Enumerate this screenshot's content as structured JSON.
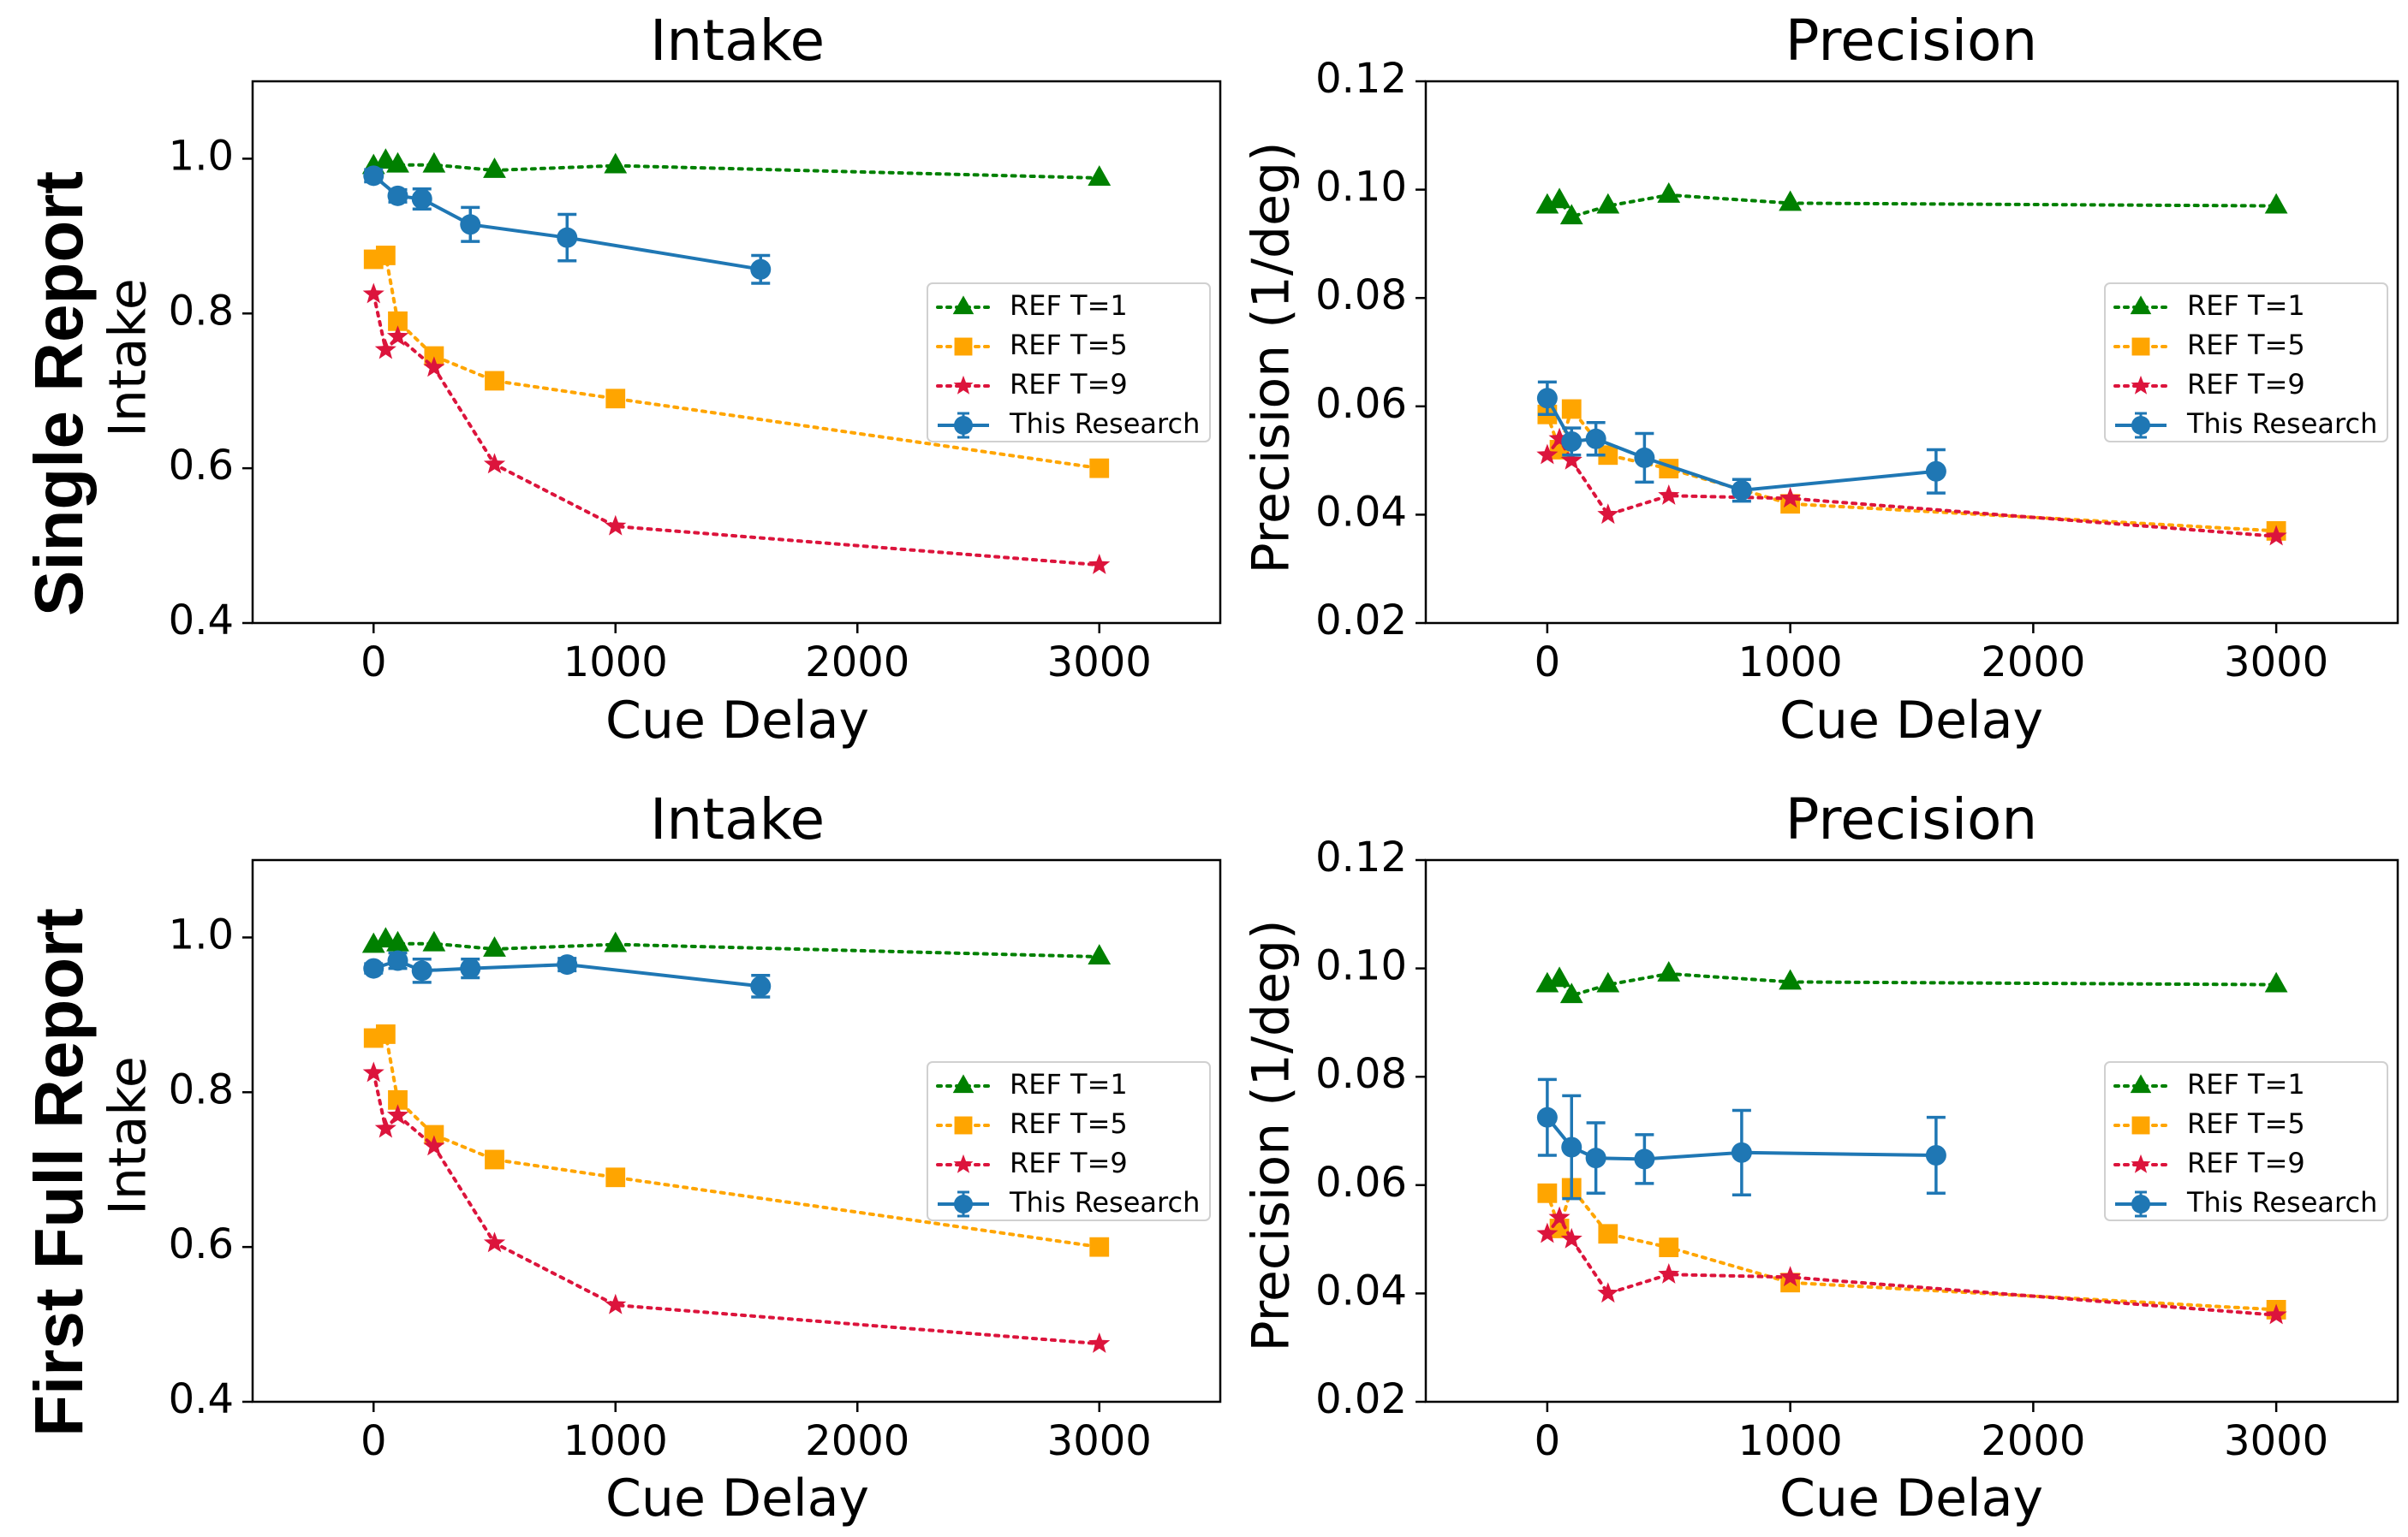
{
  "figure": {
    "row_labels": [
      "Single Report",
      "First Full Report"
    ]
  },
  "chart_data": [
    {
      "type": "line",
      "row": "Single Report",
      "title": "Intake",
      "xlabel": "Cue Delay",
      "ylabel": "Intake",
      "xlim": [
        -500,
        3500
      ],
      "ylim": [
        0.4,
        1.1
      ],
      "xticks": [
        0,
        1000,
        2000,
        3000
      ],
      "yticks": [
        0.4,
        0.6,
        0.8,
        1.0
      ],
      "xtick_labels": [
        "0",
        "1000",
        "2000",
        "3000"
      ],
      "ytick_labels": [
        "0.4",
        "0.6",
        "0.8",
        "1.0"
      ],
      "legend_position": "center-right",
      "series": [
        {
          "name": "REF T=1",
          "color": "#008000",
          "marker": "triangle",
          "style": "dotted",
          "x": [
            0,
            50,
            100,
            250,
            500,
            1000,
            3000
          ],
          "y": [
            0.99,
            0.997,
            0.992,
            0.992,
            0.985,
            0.991,
            0.975
          ]
        },
        {
          "name": "REF T=5",
          "color": "#FFA500",
          "marker": "square",
          "style": "dotted",
          "x": [
            0,
            50,
            100,
            250,
            500,
            1000,
            3000
          ],
          "y": [
            0.87,
            0.875,
            0.79,
            0.745,
            0.713,
            0.69,
            0.6
          ]
        },
        {
          "name": "REF T=9",
          "color": "#DC143C",
          "marker": "star",
          "style": "dotted",
          "x": [
            0,
            50,
            100,
            250,
            500,
            1000,
            3000
          ],
          "y": [
            0.825,
            0.753,
            0.77,
            0.73,
            0.605,
            0.525,
            0.475
          ]
        },
        {
          "name": "This Research",
          "color": "#1F77B4",
          "marker": "circle",
          "style": "solid",
          "x": [
            0,
            100,
            200,
            400,
            800,
            1600
          ],
          "y": [
            0.978,
            0.952,
            0.948,
            0.915,
            0.898,
            0.857
          ],
          "err": [
            0.008,
            0.008,
            0.013,
            0.022,
            0.03,
            0.018
          ]
        }
      ]
    },
    {
      "type": "line",
      "row": "Single Report",
      "title": "Precision",
      "xlabel": "Cue Delay",
      "ylabel": "Precision (1/deg)",
      "xlim": [
        -500,
        3500
      ],
      "ylim": [
        0.02,
        0.12
      ],
      "xticks": [
        0,
        1000,
        2000,
        3000
      ],
      "yticks": [
        0.02,
        0.04,
        0.06,
        0.08,
        0.1,
        0.12
      ],
      "xtick_labels": [
        "0",
        "1000",
        "2000",
        "3000"
      ],
      "ytick_labels": [
        "0.02",
        "0.04",
        "0.06",
        "0.08",
        "0.10",
        "0.12"
      ],
      "legend_position": "center-right",
      "series": [
        {
          "name": "REF T=1",
          "color": "#008000",
          "marker": "triangle",
          "style": "dotted",
          "x": [
            0,
            50,
            100,
            250,
            500,
            1000,
            3000
          ],
          "y": [
            0.097,
            0.098,
            0.095,
            0.097,
            0.099,
            0.0975,
            0.097
          ]
        },
        {
          "name": "REF T=5",
          "color": "#FFA500",
          "marker": "square",
          "style": "dotted",
          "x": [
            0,
            50,
            100,
            250,
            500,
            1000,
            3000
          ],
          "y": [
            0.0585,
            0.052,
            0.0595,
            0.051,
            0.0485,
            0.042,
            0.037
          ]
        },
        {
          "name": "REF T=9",
          "color": "#DC143C",
          "marker": "star",
          "style": "dotted",
          "x": [
            0,
            50,
            100,
            250,
            500,
            1000,
            3000
          ],
          "y": [
            0.051,
            0.054,
            0.05,
            0.04,
            0.0435,
            0.043,
            0.036
          ]
        },
        {
          "name": "This Research",
          "color": "#1F77B4",
          "marker": "circle",
          "style": "solid",
          "x": [
            0,
            100,
            200,
            400,
            800,
            1600
          ],
          "y": [
            0.0615,
            0.0535,
            0.054,
            0.0505,
            0.0445,
            0.048
          ],
          "err": [
            0.003,
            0.0025,
            0.003,
            0.0045,
            0.002,
            0.004
          ]
        }
      ]
    },
    {
      "type": "line",
      "row": "First Full Report",
      "title": "Intake",
      "xlabel": "Cue Delay",
      "ylabel": "Intake",
      "xlim": [
        -500,
        3500
      ],
      "ylim": [
        0.4,
        1.1
      ],
      "xticks": [
        0,
        1000,
        2000,
        3000
      ],
      "yticks": [
        0.4,
        0.6,
        0.8,
        1.0
      ],
      "xtick_labels": [
        "0",
        "1000",
        "2000",
        "3000"
      ],
      "ytick_labels": [
        "0.4",
        "0.6",
        "0.8",
        "1.0"
      ],
      "legend_position": "center-right",
      "series": [
        {
          "name": "REF T=1",
          "color": "#008000",
          "marker": "triangle",
          "style": "dotted",
          "x": [
            0,
            50,
            100,
            250,
            500,
            1000,
            3000
          ],
          "y": [
            0.99,
            0.997,
            0.992,
            0.992,
            0.985,
            0.991,
            0.975
          ]
        },
        {
          "name": "REF T=5",
          "color": "#FFA500",
          "marker": "square",
          "style": "dotted",
          "x": [
            0,
            50,
            100,
            250,
            500,
            1000,
            3000
          ],
          "y": [
            0.87,
            0.875,
            0.79,
            0.745,
            0.713,
            0.69,
            0.6
          ]
        },
        {
          "name": "REF T=9",
          "color": "#DC143C",
          "marker": "star",
          "style": "dotted",
          "x": [
            0,
            50,
            100,
            250,
            500,
            1000,
            3000
          ],
          "y": [
            0.825,
            0.753,
            0.77,
            0.73,
            0.605,
            0.525,
            0.475
          ]
        },
        {
          "name": "This Research",
          "color": "#1F77B4",
          "marker": "circle",
          "style": "solid",
          "x": [
            0,
            100,
            200,
            400,
            800,
            1600
          ],
          "y": [
            0.96,
            0.97,
            0.957,
            0.96,
            0.965,
            0.937
          ],
          "err": [
            0.006,
            0.01,
            0.015,
            0.012,
            0.008,
            0.014
          ]
        }
      ]
    },
    {
      "type": "line",
      "row": "First Full Report",
      "title": "Precision",
      "xlabel": "Cue Delay",
      "ylabel": "Precision (1/deg)",
      "xlim": [
        -500,
        3500
      ],
      "ylim": [
        0.02,
        0.12
      ],
      "xticks": [
        0,
        1000,
        2000,
        3000
      ],
      "yticks": [
        0.02,
        0.04,
        0.06,
        0.08,
        0.1,
        0.12
      ],
      "xtick_labels": [
        "0",
        "1000",
        "2000",
        "3000"
      ],
      "ytick_labels": [
        "0.02",
        "0.04",
        "0.06",
        "0.08",
        "0.10",
        "0.12"
      ],
      "legend_position": "center-right",
      "series": [
        {
          "name": "REF T=1",
          "color": "#008000",
          "marker": "triangle",
          "style": "dotted",
          "x": [
            0,
            50,
            100,
            250,
            500,
            1000,
            3000
          ],
          "y": [
            0.097,
            0.098,
            0.095,
            0.097,
            0.099,
            0.0975,
            0.097
          ]
        },
        {
          "name": "REF T=5",
          "color": "#FFA500",
          "marker": "square",
          "style": "dotted",
          "x": [
            0,
            50,
            100,
            250,
            500,
            1000,
            3000
          ],
          "y": [
            0.0585,
            0.052,
            0.0595,
            0.051,
            0.0485,
            0.042,
            0.037
          ]
        },
        {
          "name": "REF T=9",
          "color": "#DC143C",
          "marker": "star",
          "style": "dotted",
          "x": [
            0,
            50,
            100,
            250,
            500,
            1000,
            3000
          ],
          "y": [
            0.051,
            0.054,
            0.05,
            0.04,
            0.0435,
            0.043,
            0.036
          ]
        },
        {
          "name": "This Research",
          "color": "#1F77B4",
          "marker": "circle",
          "style": "solid",
          "x": [
            0,
            100,
            200,
            400,
            800,
            1600
          ],
          "y": [
            0.0725,
            0.067,
            0.065,
            0.0648,
            0.066,
            0.0655
          ],
          "err": [
            0.007,
            0.0095,
            0.0065,
            0.0045,
            0.0078,
            0.007
          ]
        }
      ]
    }
  ]
}
